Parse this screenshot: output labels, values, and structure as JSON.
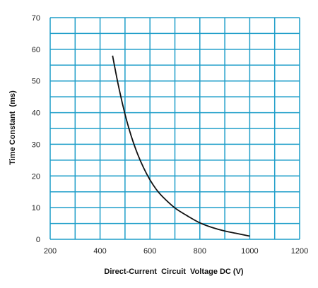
{
  "chart_data": {
    "type": "line",
    "title": "",
    "xlabel": "Direct-Current  Circuit  Voltage DC (V)",
    "ylabel": "Time Constant  (ms)",
    "xlim": [
      200,
      1200
    ],
    "ylim": [
      0,
      70
    ],
    "x_ticks": [
      "200",
      "400",
      "600",
      "800",
      "1000",
      "1200"
    ],
    "y_ticks": [
      "0",
      "10",
      "20",
      "30",
      "40",
      "50",
      "60",
      "70"
    ],
    "x_grid_step": 100,
    "y_grid_step": 5,
    "grid": true,
    "colors": {
      "grid": "#1e9ec9",
      "line": "#111111"
    },
    "series": [
      {
        "x": [
          450,
          475,
          500,
          525,
          550,
          575,
          600,
          625,
          650,
          700,
          750,
          800,
          850,
          900,
          950,
          1000
        ],
        "values": [
          58.0,
          48.0,
          39.5,
          32.6,
          27.0,
          22.5,
          18.8,
          15.8,
          13.5,
          9.9,
          7.4,
          5.2,
          3.7,
          2.6,
          1.8,
          1.0
        ]
      }
    ]
  }
}
